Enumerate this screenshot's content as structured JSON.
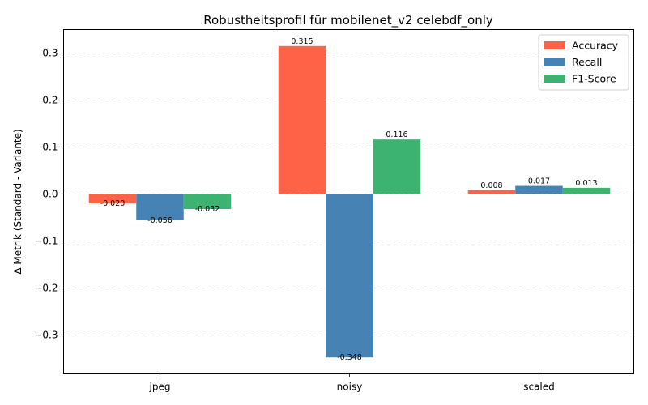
{
  "chart_data": {
    "type": "bar",
    "title": "Robustheitsprofil für mobilenet_v2 celebdf_only",
    "xlabel": "",
    "ylabel": "Δ Metrik (Standard - Variante)",
    "categories": [
      "jpeg",
      "noisy",
      "scaled"
    ],
    "series": [
      {
        "name": "Accuracy",
        "color": "#ff6347",
        "values": [
          -0.02,
          0.315,
          0.008
        ],
        "labels": [
          "-0.020",
          "0.315",
          "0.008"
        ]
      },
      {
        "name": "Recall",
        "color": "#4682b4",
        "values": [
          -0.056,
          -0.348,
          0.017
        ],
        "labels": [
          "-0.056",
          "-0.348",
          "0.017"
        ]
      },
      {
        "name": "F1-Score",
        "color": "#3cb371",
        "values": [
          -0.032,
          0.116,
          0.013
        ],
        "labels": [
          "-0.032",
          "0.116",
          "0.013"
        ]
      }
    ],
    "ylim": [
      -0.383,
      0.35
    ],
    "yticks": [
      -0.3,
      -0.2,
      -0.1,
      0.0,
      0.1,
      0.2,
      0.3
    ],
    "ytick_labels": [
      "−0.3",
      "−0.2",
      "−0.1",
      "0.0",
      "0.1",
      "0.2",
      "0.3"
    ],
    "grid": "y-dashed",
    "legend_position": "top-right"
  }
}
